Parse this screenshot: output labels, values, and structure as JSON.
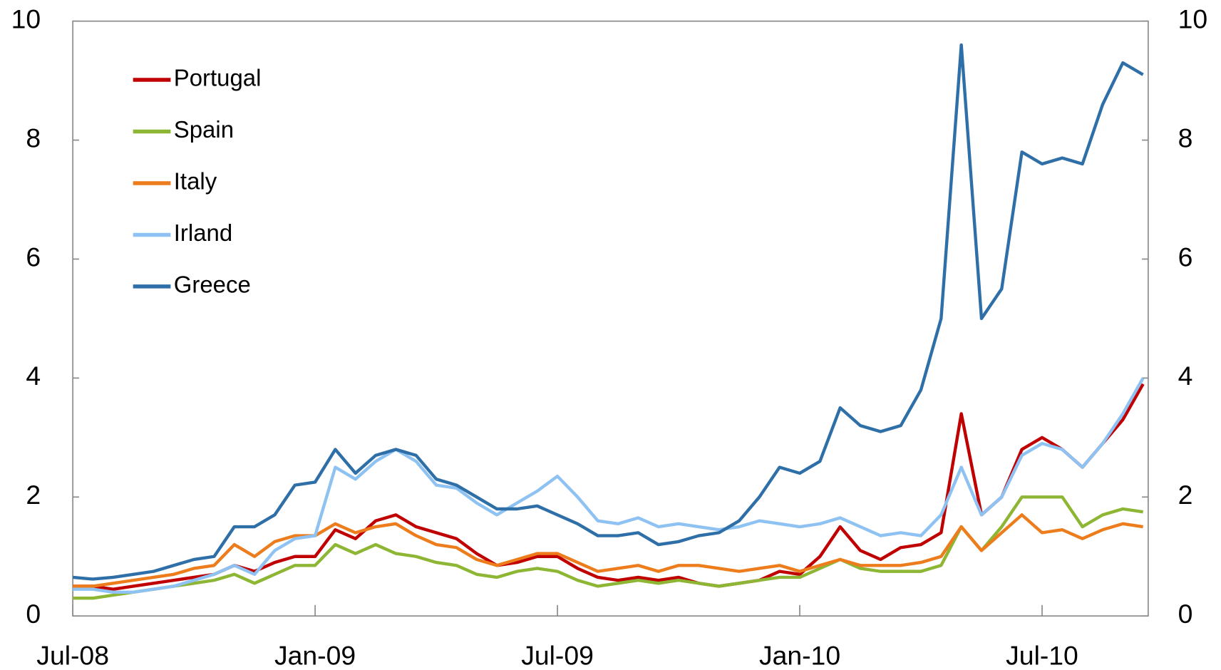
{
  "chart_data": {
    "type": "line",
    "categories": [
      "Jul-08",
      null,
      null,
      null,
      null,
      null,
      null,
      null,
      null,
      null,
      null,
      null,
      "Jan-09",
      null,
      null,
      null,
      null,
      null,
      null,
      null,
      null,
      null,
      null,
      null,
      "Jul-09",
      null,
      null,
      null,
      null,
      null,
      null,
      null,
      null,
      null,
      null,
      null,
      "Jan-10",
      null,
      null,
      null,
      null,
      null,
      null,
      null,
      null,
      null,
      null,
      null,
      "Jul-10",
      null,
      null,
      null,
      null,
      null
    ],
    "series": [
      {
        "name": "Portugal",
        "color": "#c00000",
        "values": [
          0.5,
          0.5,
          0.45,
          0.5,
          0.55,
          0.6,
          0.65,
          0.7,
          0.85,
          0.75,
          0.9,
          1.0,
          1.0,
          1.45,
          1.3,
          1.6,
          1.7,
          1.5,
          1.4,
          1.3,
          1.05,
          0.85,
          0.9,
          1.0,
          1.0,
          0.8,
          0.65,
          0.6,
          0.65,
          0.6,
          0.65,
          0.55,
          0.5,
          0.55,
          0.6,
          0.75,
          0.7,
          1.0,
          1.5,
          1.1,
          0.95,
          1.15,
          1.2,
          1.4,
          3.4,
          1.7,
          2.0,
          2.8,
          3.0,
          2.8,
          2.5,
          2.9,
          3.3,
          3.9
        ]
      },
      {
        "name": "Spain",
        "color": "#8db634",
        "values": [
          0.3,
          0.3,
          0.35,
          0.4,
          0.45,
          0.5,
          0.55,
          0.6,
          0.7,
          0.55,
          0.7,
          0.85,
          0.85,
          1.2,
          1.05,
          1.2,
          1.05,
          1.0,
          0.9,
          0.85,
          0.7,
          0.65,
          0.75,
          0.8,
          0.75,
          0.6,
          0.5,
          0.55,
          0.6,
          0.55,
          0.6,
          0.55,
          0.5,
          0.55,
          0.6,
          0.65,
          0.65,
          0.8,
          0.95,
          0.8,
          0.75,
          0.75,
          0.75,
          0.85,
          1.5,
          1.1,
          1.5,
          2.0,
          2.0,
          2.0,
          1.5,
          1.7,
          1.8,
          1.75
        ]
      },
      {
        "name": "Italy",
        "color": "#ed7d1c",
        "values": [
          0.5,
          0.5,
          0.55,
          0.6,
          0.65,
          0.7,
          0.8,
          0.85,
          1.2,
          1.0,
          1.25,
          1.35,
          1.35,
          1.55,
          1.4,
          1.5,
          1.55,
          1.35,
          1.2,
          1.15,
          0.95,
          0.85,
          0.95,
          1.05,
          1.05,
          0.9,
          0.75,
          0.8,
          0.85,
          0.75,
          0.85,
          0.85,
          0.8,
          0.75,
          0.8,
          0.85,
          0.75,
          0.85,
          0.95,
          0.85,
          0.85,
          0.85,
          0.9,
          1.0,
          1.5,
          1.1,
          1.4,
          1.7,
          1.4,
          1.45,
          1.3,
          1.45,
          1.55,
          1.5
        ]
      },
      {
        "name": "Irland",
        "color": "#8ec2f2",
        "values": [
          0.45,
          0.45,
          0.4,
          0.4,
          0.45,
          0.5,
          0.6,
          0.7,
          0.85,
          0.7,
          1.1,
          1.3,
          1.35,
          2.5,
          2.3,
          2.6,
          2.8,
          2.6,
          2.2,
          2.15,
          1.9,
          1.7,
          1.9,
          2.1,
          2.35,
          2.0,
          1.6,
          1.55,
          1.65,
          1.5,
          1.55,
          1.5,
          1.45,
          1.5,
          1.6,
          1.55,
          1.5,
          1.55,
          1.65,
          1.5,
          1.35,
          1.4,
          1.35,
          1.7,
          2.5,
          1.7,
          2.0,
          2.7,
          2.9,
          2.8,
          2.5,
          2.9,
          3.4,
          4.0
        ]
      },
      {
        "name": "Greece",
        "color": "#2f6fa8",
        "values": [
          0.65,
          0.62,
          0.65,
          0.7,
          0.75,
          0.85,
          0.95,
          1.0,
          1.5,
          1.5,
          1.7,
          2.2,
          2.25,
          2.8,
          2.4,
          2.7,
          2.8,
          2.7,
          2.3,
          2.2,
          2.0,
          1.8,
          1.8,
          1.85,
          1.7,
          1.55,
          1.35,
          1.35,
          1.4,
          1.2,
          1.25,
          1.35,
          1.4,
          1.6,
          2.0,
          2.5,
          2.4,
          2.6,
          3.5,
          3.2,
          3.1,
          3.2,
          3.8,
          5.0,
          9.6,
          5.0,
          5.5,
          7.8,
          7.6,
          7.7,
          7.6,
          8.6,
          9.3,
          9.1
        ]
      }
    ],
    "ylim": [
      0,
      10
    ],
    "yticks": [
      0,
      2,
      4,
      6,
      8,
      10
    ],
    "y2lim": [
      0,
      10
    ],
    "y2ticks": [
      0,
      2,
      4,
      6,
      8,
      10
    ],
    "legend": "upper left"
  }
}
